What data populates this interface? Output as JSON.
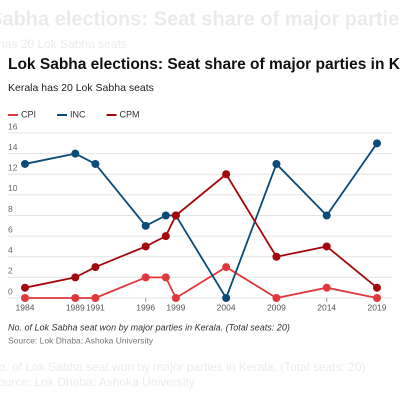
{
  "chart_data": {
    "type": "line",
    "title": "Lok Sabha elections: Seat share of major parties in Kerala",
    "subtitle": "Kerala has 20 Lok Sabha seats",
    "note": "No. of Lok Sabha seat won by major parties in Kerala. (Total seats: 20)",
    "source": "Source: Lok Dhaba: Ashoka University",
    "x": [
      1984,
      1989,
      1991,
      1996,
      1998,
      1999,
      2004,
      2009,
      2014,
      2019
    ],
    "series": [
      {
        "name": "CPI",
        "color": "#e0383d",
        "values": [
          0,
          0,
          0,
          2,
          2,
          0,
          3,
          0,
          1,
          0
        ]
      },
      {
        "name": "INC",
        "color": "#0b4b78",
        "values": [
          13,
          14,
          13,
          7,
          8,
          8,
          0,
          13,
          8,
          15
        ]
      },
      {
        "name": "CPM",
        "color": "#a3080f",
        "values": [
          1,
          2,
          3,
          5,
          6,
          8,
          12,
          4,
          5,
          1
        ]
      }
    ],
    "xlim": [
      1984,
      2019
    ],
    "xticks": [
      1984,
      1989,
      1991,
      1996,
      1999,
      2004,
      2009,
      2014,
      2019
    ],
    "ylim": [
      0,
      16
    ],
    "yticks": [
      0,
      2,
      4,
      6,
      8,
      10,
      12,
      14,
      16
    ],
    "grid": true
  }
}
